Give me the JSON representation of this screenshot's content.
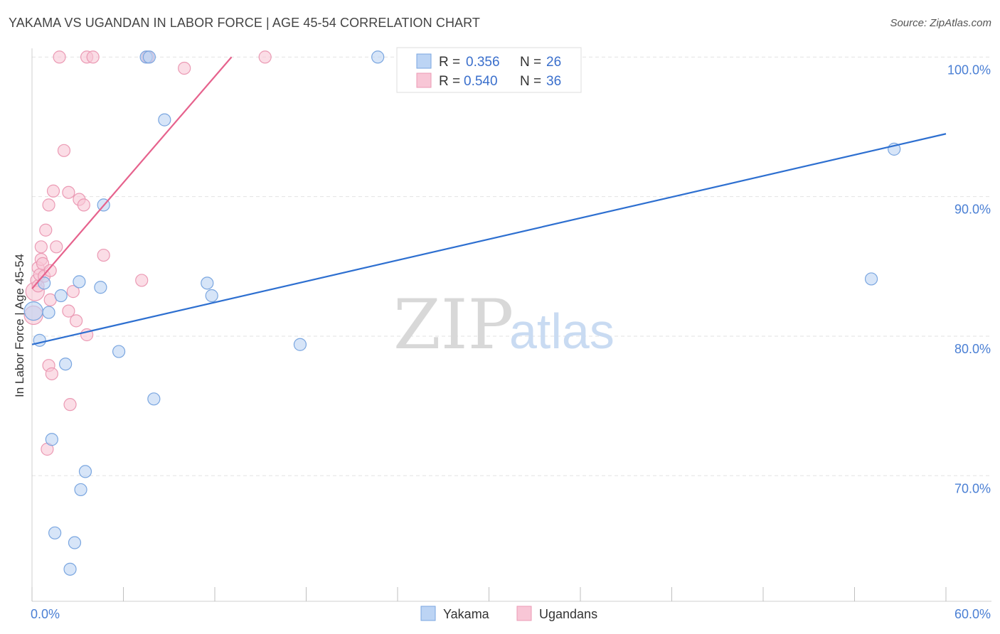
{
  "title": "YAKAMA VS UGANDAN IN LABOR FORCE | AGE 45-54 CORRELATION CHART",
  "source": "Source: ZipAtlas.com",
  "watermark": {
    "part1": "ZIP",
    "part2": "atlas"
  },
  "colors": {
    "yakama_fill": "#bcd4f4",
    "yakama_stroke": "#7aa6e0",
    "yakama_line": "#2d6fd0",
    "ugandans_fill": "#f8c6d6",
    "ugandans_stroke": "#eb9ab4",
    "ugandans_line": "#e6628d",
    "tick_text": "#4a7fd4",
    "grid": "#e2e2e2"
  },
  "legend": {
    "rows": [
      {
        "r_label": "R =",
        "r_value": "0.356",
        "n_label": "N =",
        "n_value": "26"
      },
      {
        "r_label": "R =",
        "r_value": "0.540",
        "n_label": "N =",
        "n_value": "36"
      }
    ]
  },
  "chart_data": {
    "type": "scatter",
    "title": "YAKAMA VS UGANDAN IN LABOR FORCE | AGE 45-54 CORRELATION CHART",
    "xlabel": "",
    "ylabel": "In Labor Force | Age 45-54",
    "xlim": [
      0,
      60
    ],
    "ylim": [
      61,
      102
    ],
    "x_tick_labels": [
      {
        "value": 0,
        "label": "0.0%"
      },
      {
        "value": 60,
        "label": "60.0%"
      }
    ],
    "y_tick_labels": [
      {
        "value": 100,
        "label": "100.0%"
      },
      {
        "value": 90,
        "label": "90.0%"
      },
      {
        "value": 80,
        "label": "80.0%"
      },
      {
        "value": 70,
        "label": "70.0%"
      }
    ],
    "x_minor_ticks": [
      0,
      6,
      12,
      18,
      24,
      30,
      36,
      42,
      48,
      54,
      60
    ],
    "series": [
      {
        "name": "Yakama",
        "r": 0.356,
        "n": 26,
        "trend": {
          "x0": 0,
          "y0": 79.4,
          "x1": 60,
          "y1": 94.5
        },
        "points": [
          [
            0.1,
            81.8
          ],
          [
            0.5,
            79.7
          ],
          [
            0.8,
            83.8
          ],
          [
            1.1,
            81.7
          ],
          [
            1.3,
            72.6
          ],
          [
            1.5,
            65.9
          ],
          [
            1.9,
            82.9
          ],
          [
            2.2,
            78.0
          ],
          [
            2.5,
            63.3
          ],
          [
            2.8,
            65.2
          ],
          [
            3.1,
            83.9
          ],
          [
            3.2,
            69.0
          ],
          [
            3.5,
            70.3
          ],
          [
            4.5,
            83.5
          ],
          [
            4.7,
            89.4
          ],
          [
            5.7,
            78.9
          ],
          [
            7.5,
            100.0
          ],
          [
            7.7,
            100.0
          ],
          [
            8.0,
            75.5
          ],
          [
            8.7,
            95.5
          ],
          [
            11.5,
            83.8
          ],
          [
            11.8,
            82.9
          ],
          [
            17.6,
            79.4
          ],
          [
            22.7,
            100.0
          ],
          [
            55.1,
            84.1
          ],
          [
            56.6,
            93.4
          ]
        ]
      },
      {
        "name": "Ugandans",
        "r": 0.54,
        "n": 36,
        "trend": {
          "x0": 0,
          "y0": 83.4,
          "x1": 13.1,
          "y1": 100
        },
        "points": [
          [
            0.1,
            81.5
          ],
          [
            0.2,
            83.2
          ],
          [
            0.3,
            84.0
          ],
          [
            0.4,
            83.6
          ],
          [
            0.4,
            84.9
          ],
          [
            0.5,
            84.4
          ],
          [
            0.6,
            85.5
          ],
          [
            0.6,
            86.4
          ],
          [
            0.7,
            85.2
          ],
          [
            0.8,
            84.3
          ],
          [
            0.9,
            87.6
          ],
          [
            1.0,
            71.9
          ],
          [
            1.1,
            89.4
          ],
          [
            1.1,
            77.9
          ],
          [
            1.2,
            82.6
          ],
          [
            1.3,
            77.3
          ],
          [
            1.2,
            84.7
          ],
          [
            1.4,
            90.4
          ],
          [
            1.6,
            86.4
          ],
          [
            1.8,
            100.0
          ],
          [
            2.1,
            93.3
          ],
          [
            2.4,
            81.8
          ],
          [
            2.5,
            75.1
          ],
          [
            2.4,
            90.3
          ],
          [
            2.7,
            83.2
          ],
          [
            2.9,
            81.1
          ],
          [
            3.1,
            89.8
          ],
          [
            3.4,
            89.4
          ],
          [
            3.6,
            80.1
          ],
          [
            3.6,
            100.0
          ],
          [
            4.0,
            100.0
          ],
          [
            4.7,
            85.8
          ],
          [
            7.2,
            84.0
          ],
          [
            7.6,
            100.0
          ],
          [
            10.0,
            99.2
          ],
          [
            15.3,
            100.0
          ]
        ]
      }
    ]
  }
}
